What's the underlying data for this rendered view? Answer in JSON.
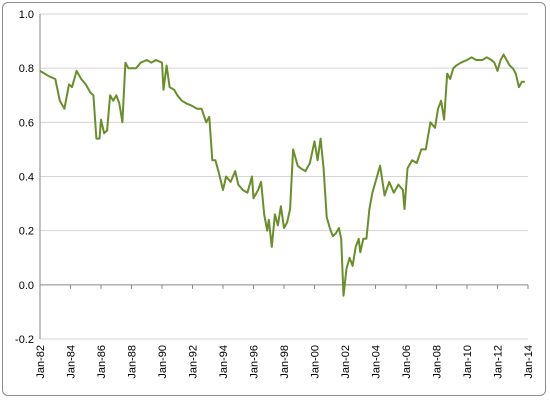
{
  "chart_data": {
    "type": "line",
    "title": "",
    "xlabel": "",
    "ylabel": "",
    "ylim": [
      -0.2,
      1.0
    ],
    "yticks": [
      "-0.2",
      "0.0",
      "0.2",
      "0.4",
      "0.6",
      "0.8",
      "1.0"
    ],
    "xrange": [
      1982.0,
      2014.0
    ],
    "xticks": [
      "Jan-82",
      "Jan-84",
      "Jan-86",
      "Jan-88",
      "Jan-90",
      "Jan-92",
      "Jan-94",
      "Jan-96",
      "Jan-98",
      "Jan-00",
      "Jan-02",
      "Jan-04",
      "Jan-06",
      "Jan-08",
      "Jan-10",
      "Jan-12",
      "Jan-14"
    ],
    "grid": "horizontal major",
    "legend": "none",
    "line_color": "#6a8e2b",
    "series": [
      {
        "x": [
          1982.0,
          1982.3,
          1982.6,
          1983.0,
          1983.3,
          1983.6,
          1983.9,
          1984.1,
          1984.4,
          1984.7,
          1985.0,
          1985.3,
          1985.5,
          1985.7,
          1985.9,
          1986.0,
          1986.2,
          1986.4,
          1986.6,
          1986.8,
          1987.0,
          1987.2,
          1987.4,
          1987.6,
          1987.8,
          1988.0,
          1988.3,
          1988.6,
          1989.0,
          1989.3,
          1989.6,
          1990.0,
          1990.1,
          1990.3,
          1990.5,
          1990.8,
          1991.0,
          1991.3,
          1991.6,
          1992.0,
          1992.3,
          1992.6,
          1992.9,
          1993.1,
          1993.3,
          1993.5,
          1993.7,
          1994.0,
          1994.2,
          1994.5,
          1994.8,
          1995.0,
          1995.3,
          1995.6,
          1995.9,
          1996.0,
          1996.3,
          1996.5,
          1996.7,
          1996.9,
          1997.0,
          1997.2,
          1997.4,
          1997.6,
          1997.8,
          1998.0,
          1998.2,
          1998.4,
          1998.6,
          1998.9,
          1999.1,
          1999.4,
          1999.7,
          2000.0,
          2000.2,
          2000.4,
          2000.6,
          2000.8,
          2001.0,
          2001.2,
          2001.4,
          2001.6,
          2001.75,
          2001.9,
          2002.1,
          2002.3,
          2002.5,
          2002.7,
          2002.9,
          2003.0,
          2003.2,
          2003.4,
          2003.6,
          2003.8,
          2004.0,
          2004.3,
          2004.6,
          2004.9,
          2005.2,
          2005.5,
          2005.8,
          2005.9,
          2006.1,
          2006.4,
          2006.7,
          2007.0,
          2007.3,
          2007.6,
          2007.9,
          2008.1,
          2008.3,
          2008.5,
          2008.7,
          2008.9,
          2009.1,
          2009.3,
          2009.6,
          2010.0,
          2010.3,
          2010.6,
          2011.0,
          2011.3,
          2011.6,
          2011.8,
          2012.0,
          2012.2,
          2012.4,
          2012.6,
          2012.8,
          2013.0,
          2013.2,
          2013.4,
          2013.6,
          2013.8
        ],
        "y": [
          0.79,
          0.78,
          0.77,
          0.76,
          0.68,
          0.65,
          0.74,
          0.73,
          0.79,
          0.76,
          0.74,
          0.71,
          0.7,
          0.54,
          0.54,
          0.61,
          0.56,
          0.57,
          0.7,
          0.68,
          0.7,
          0.67,
          0.6,
          0.82,
          0.8,
          0.8,
          0.8,
          0.82,
          0.83,
          0.82,
          0.83,
          0.82,
          0.72,
          0.81,
          0.73,
          0.72,
          0.7,
          0.68,
          0.67,
          0.66,
          0.65,
          0.65,
          0.6,
          0.62,
          0.46,
          0.46,
          0.42,
          0.35,
          0.4,
          0.38,
          0.42,
          0.37,
          0.35,
          0.34,
          0.4,
          0.32,
          0.35,
          0.38,
          0.26,
          0.2,
          0.24,
          0.14,
          0.26,
          0.22,
          0.29,
          0.21,
          0.23,
          0.28,
          0.5,
          0.44,
          0.43,
          0.42,
          0.45,
          0.53,
          0.46,
          0.54,
          0.43,
          0.25,
          0.21,
          0.18,
          0.19,
          0.21,
          0.17,
          -0.04,
          0.06,
          0.1,
          0.07,
          0.14,
          0.17,
          0.12,
          0.17,
          0.17,
          0.28,
          0.34,
          0.38,
          0.44,
          0.33,
          0.38,
          0.34,
          0.37,
          0.35,
          0.28,
          0.43,
          0.46,
          0.45,
          0.5,
          0.5,
          0.6,
          0.58,
          0.65,
          0.68,
          0.61,
          0.78,
          0.76,
          0.8,
          0.81,
          0.82,
          0.83,
          0.84,
          0.83,
          0.83,
          0.84,
          0.83,
          0.82,
          0.79,
          0.83,
          0.85,
          0.83,
          0.81,
          0.8,
          0.78,
          0.73,
          0.75,
          0.75
        ]
      }
    ]
  }
}
